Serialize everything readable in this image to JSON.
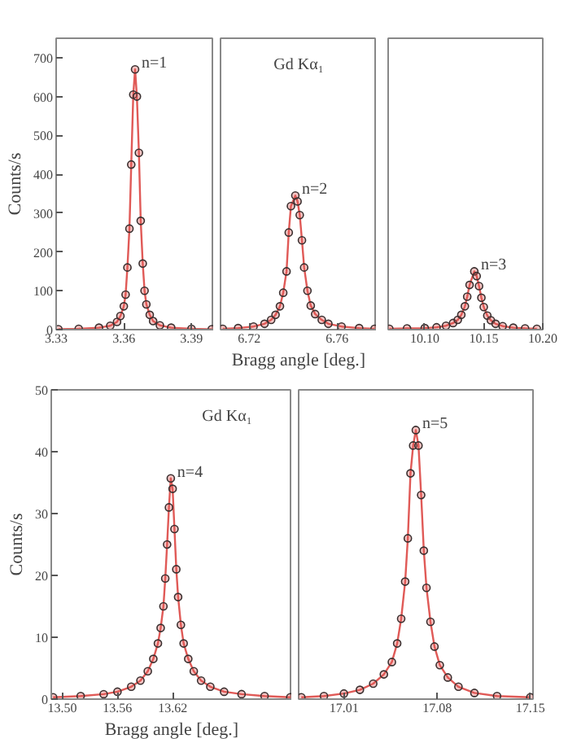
{
  "chart_data": [
    {
      "type": "line",
      "marker": "circle",
      "ylabel": "Counts/s",
      "xlim": [
        3.33,
        3.4
      ],
      "xticks": [
        3.33,
        3.36,
        3.39
      ],
      "ylim": [
        0,
        750
      ],
      "yticks": [
        0,
        100,
        200,
        300,
        400,
        500,
        600,
        700
      ],
      "annotations": [
        {
          "text": "n=1",
          "x": 3.365,
          "y": 670
        }
      ],
      "series": [
        {
          "color": "#e05a57",
          "x": [
            3.331,
            3.34,
            3.349,
            3.354,
            3.357,
            3.3585,
            3.36,
            3.3608,
            3.3616,
            3.3625,
            3.3633,
            3.3642,
            3.365,
            3.3658,
            3.3667,
            3.3675,
            3.3684,
            3.3692,
            3.37,
            3.3715,
            3.373,
            3.376,
            3.381,
            3.39,
            3.399
          ],
          "values": [
            1,
            2,
            5,
            10,
            20,
            35,
            60,
            90,
            160,
            260,
            425,
            605,
            670,
            600,
            455,
            280,
            170,
            100,
            65,
            38,
            22,
            11,
            5,
            2,
            1
          ]
        }
      ]
    },
    {
      "type": "line",
      "marker": "circle",
      "xlabel": "Bragg angle [deg.]",
      "tick_labels": "x",
      "xlim": [
        6.707,
        6.778
      ],
      "xticks": [
        6.72,
        6.76
      ],
      "ylim": [
        0,
        750
      ],
      "yticks": [
        0,
        100,
        200,
        300,
        400,
        500,
        600,
        700
      ],
      "annotations": [
        "Gd Kα₁",
        {
          "text": "n=2",
          "x": 6.741,
          "y": 345
        }
      ],
      "series": [
        {
          "color": "#e05a57",
          "x": [
            6.708,
            6.715,
            6.722,
            6.727,
            6.73,
            6.732,
            6.734,
            6.7355,
            6.737,
            6.738,
            6.739,
            6.741,
            6.742,
            6.743,
            6.744,
            6.745,
            6.7465,
            6.748,
            6.75,
            6.753,
            6.756,
            6.762,
            6.77,
            6.777
          ],
          "values": [
            2,
            4,
            8,
            15,
            25,
            38,
            60,
            95,
            150,
            250,
            318,
            345,
            330,
            295,
            230,
            160,
            100,
            62,
            40,
            25,
            15,
            8,
            4,
            2
          ]
        }
      ]
    },
    {
      "type": "line",
      "marker": "circle",
      "tick_labels": "x",
      "xlim": [
        10.069,
        10.2
      ],
      "xticks": [
        {
          "value": 10.1,
          "label": "10.10"
        },
        10.15,
        {
          "value": 10.2,
          "label": "10.20"
        }
      ],
      "ylim": [
        0,
        750
      ],
      "yticks": [
        0,
        100,
        200,
        300,
        400,
        500,
        600,
        700
      ],
      "annotations": [
        {
          "text": "n=3",
          "x": 10.142,
          "y": 150
        }
      ],
      "series": [
        {
          "color": "#e05a57",
          "x": [
            10.07,
            10.085,
            10.1,
            10.11,
            10.118,
            10.124,
            10.128,
            10.131,
            10.134,
            10.136,
            10.138,
            10.142,
            10.144,
            10.146,
            10.148,
            10.15,
            10.153,
            10.156,
            10.16,
            10.166,
            10.175,
            10.185,
            10.195
          ],
          "values": [
            2,
            3,
            4,
            6,
            10,
            17,
            25,
            38,
            60,
            85,
            115,
            150,
            138,
            112,
            82,
            58,
            36,
            24,
            15,
            9,
            5,
            3,
            2
          ]
        }
      ]
    },
    {
      "type": "line",
      "marker": "circle",
      "ylabel": "Counts/s",
      "xlabel": "Bragg angle [deg.]",
      "xlim": [
        13.488,
        13.75
      ],
      "xticks": [
        {
          "value": 13.5,
          "label": "13.50"
        },
        13.56,
        13.62
      ],
      "ylim": [
        0,
        50
      ],
      "yticks": [
        0,
        10,
        20,
        30,
        40,
        50
      ],
      "annotations": [
        "Gd Kα₁",
        {
          "text": "n=4",
          "x": 13.618,
          "y": 35.7
        }
      ],
      "series": [
        {
          "color": "#e05a57",
          "x": [
            13.49,
            13.52,
            13.545,
            13.56,
            13.575,
            13.585,
            13.593,
            13.599,
            13.604,
            13.607,
            13.61,
            13.612,
            13.614,
            13.616,
            13.618,
            13.62,
            13.622,
            13.624,
            13.626,
            13.629,
            13.632,
            13.637,
            13.643,
            13.651,
            13.661,
            13.676,
            13.695,
            13.72,
            13.748
          ],
          "values": [
            0.3,
            0.5,
            0.8,
            1.2,
            2,
            3,
            4.5,
            6.5,
            9,
            11.5,
            15,
            19.5,
            25,
            31,
            35.7,
            34,
            27.5,
            21,
            16.5,
            12,
            9,
            6.5,
            4.5,
            3,
            2,
            1.2,
            0.8,
            0.5,
            0.3
          ]
        }
      ]
    },
    {
      "type": "line",
      "marker": "circle",
      "tick_labels": "x",
      "xlim": [
        16.976,
        17.152
      ],
      "xticks": [
        17.01,
        17.08,
        17.15
      ],
      "ylim": [
        0,
        50
      ],
      "yticks": [
        0,
        10,
        20,
        30,
        40,
        50
      ],
      "annotations": [
        {
          "text": "n=5",
          "x": 17.064,
          "y": 43.5
        }
      ],
      "series": [
        {
          "color": "#e05a57",
          "x": [
            16.978,
            16.995,
            17.01,
            17.022,
            17.032,
            17.04,
            17.046,
            17.05,
            17.053,
            17.056,
            17.058,
            17.06,
            17.062,
            17.064,
            17.066,
            17.068,
            17.07,
            17.072,
            17.075,
            17.078,
            17.082,
            17.088,
            17.096,
            17.108,
            17.125,
            17.15
          ],
          "values": [
            0.3,
            0.5,
            0.9,
            1.5,
            2.5,
            4,
            6,
            9,
            13,
            19,
            26,
            36.5,
            41,
            43.5,
            41,
            33,
            24,
            18,
            12.5,
            8.5,
            5.5,
            3.5,
            2,
            1,
            0.5,
            0.3
          ]
        }
      ]
    }
  ]
}
